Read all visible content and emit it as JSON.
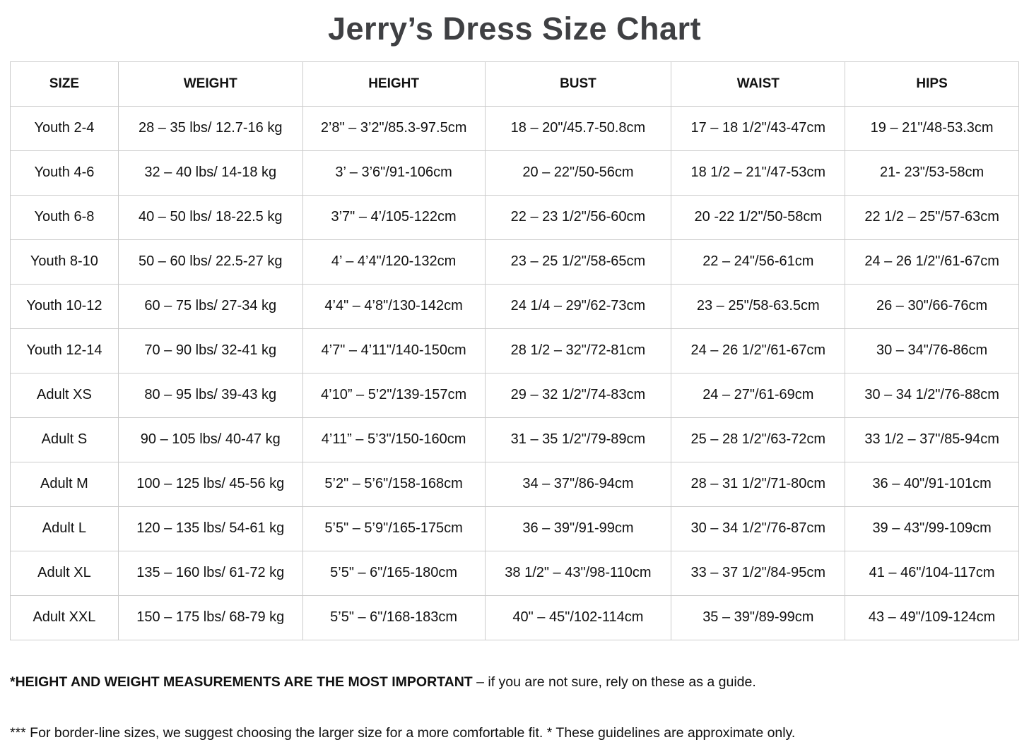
{
  "title": "Jerry’s Dress Size Chart",
  "chart_data": {
    "type": "table",
    "title": "Jerry’s Dress Size Chart",
    "columns": [
      "SIZE",
      "WEIGHT",
      "HEIGHT",
      "BUST",
      "WAIST",
      "HIPS"
    ],
    "rows": [
      [
        "Youth 2-4",
        "28 – 35 lbs/ 12.7-16 kg",
        "2’8\" – 3’2\"/85.3-97.5cm",
        "18 – 20\"/45.7-50.8cm",
        "17 – 18 1/2\"/43-47cm",
        "19 – 21\"/48-53.3cm"
      ],
      [
        "Youth 4-6",
        "32 – 40 lbs/ 14-18 kg",
        "3’ – 3’6\"/91-106cm",
        "20 – 22\"/50-56cm",
        "18 1/2 – 21\"/47-53cm",
        "21- 23\"/53-58cm"
      ],
      [
        "Youth 6-8",
        "40 – 50 lbs/ 18-22.5 kg",
        "3’7\" – 4’/105-122cm",
        "22 – 23 1/2\"/56-60cm",
        "20 -22 1/2\"/50-58cm",
        "22 1/2 – 25\"/57-63cm"
      ],
      [
        "Youth 8-10",
        "50 – 60 lbs/ 22.5-27 kg",
        "4’ – 4’4\"/120-132cm",
        "23 – 25 1/2\"/58-65cm",
        "22 – 24\"/56-61cm",
        "24 – 26 1/2\"/61-67cm"
      ],
      [
        "Youth 10-12",
        "60 – 75 lbs/ 27-34 kg",
        "4’4\" – 4’8\"/130-142cm",
        "24 1/4 – 29\"/62-73cm",
        "23 – 25\"/58-63.5cm",
        "26 – 30\"/66-76cm"
      ],
      [
        "Youth 12-14",
        "70 – 90 lbs/ 32-41 kg",
        "4’7\" – 4’11\"/140-150cm",
        "28 1/2 – 32\"/72-81cm",
        "24 – 26 1/2\"/61-67cm",
        "30 – 34\"/76-86cm"
      ],
      [
        "Adult XS",
        "80 – 95 lbs/ 39-43 kg",
        "4’10” – 5’2\"/139-157cm",
        "29 – 32 1/2\"/74-83cm",
        "24 – 27\"/61-69cm",
        "30 – 34 1/2\"/76-88cm"
      ],
      [
        "Adult S",
        "90 – 105 lbs/ 40-47 kg",
        "4’11” – 5’3\"/150-160cm",
        "31 – 35 1/2\"/79-89cm",
        "25 – 28 1/2\"/63-72cm",
        "33 1/2 – 37\"/85-94cm"
      ],
      [
        "Adult M",
        "100 – 125 lbs/ 45-56 kg",
        "5’2\" – 5’6\"/158-168cm",
        "34 – 37\"/86-94cm",
        "28 – 31 1/2\"/71-80cm",
        "36 – 40\"/91-101cm"
      ],
      [
        "Adult L",
        "120 – 135 lbs/ 54-61 kg",
        "5’5\" – 5’9\"/165-175cm",
        "36 – 39\"/91-99cm",
        "30 – 34 1/2\"/76-87cm",
        "39 – 43\"/99-109cm"
      ],
      [
        "Adult XL",
        "135 – 160 lbs/ 61-72 kg",
        "5’5\" – 6\"/165-180cm",
        "38 1/2\" – 43\"/98-110cm",
        "33 – 37 1/2\"/84-95cm",
        "41 – 46\"/104-117cm"
      ],
      [
        "Adult XXL",
        "150 – 175 lbs/ 68-79 kg",
        "5’5\" – 6\"/168-183cm",
        "40\" – 45\"/102-114cm",
        "35 – 39\"/89-99cm",
        "43 – 49\"/109-124cm"
      ]
    ]
  },
  "footnotes": {
    "note1_bold": "*HEIGHT AND WEIGHT MEASUREMENTS ARE THE MOST IMPORTANT",
    "note1_rest": " – if you are not sure, rely on these as a guide.",
    "note2": "*** For border-line sizes, we suggest choosing the larger size for a more comfortable fit. * These guidelines are approximate only."
  },
  "colors": {
    "table_border": "#cccccc",
    "title_text": "#3f4043",
    "body_text": "#111111",
    "background": "#ffffff"
  }
}
